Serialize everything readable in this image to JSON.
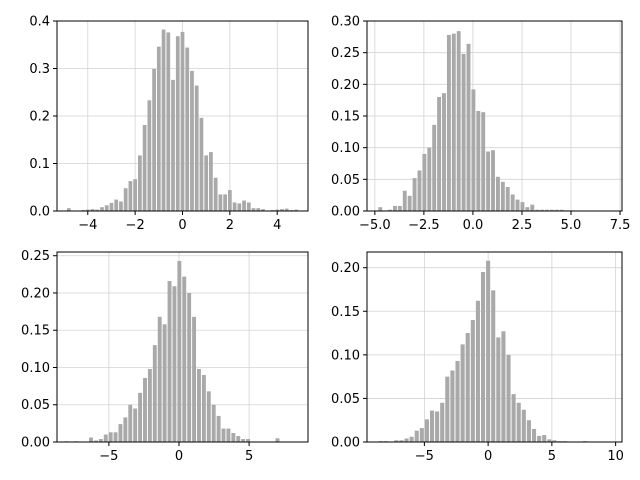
{
  "figure": {
    "background": "#ffffff",
    "bar_color": "#a9a9a9",
    "grid_color": "#d3d3d3"
  },
  "chart_data": [
    {
      "type": "bar",
      "title": "",
      "xlabel": "",
      "ylabel": "",
      "xlim": [
        -5.3,
        5.3
      ],
      "ylim": [
        0,
        0.4
      ],
      "xticks": [
        -4,
        -2,
        0,
        2,
        4
      ],
      "xtick_labels": [
        "−4",
        "−2",
        "0",
        "2",
        "4"
      ],
      "yticks": [
        0,
        0.1,
        0.2,
        0.3,
        0.4
      ],
      "ytick_labels": [
        "0.0",
        "0.1",
        "0.2",
        "0.3",
        "0.4"
      ],
      "grid": true,
      "bin_edges_start": -4.9,
      "bin_width": 0.2,
      "values": [
        0.006,
        0,
        0,
        0.002,
        0.003,
        0.004,
        0.003,
        0.008,
        0.012,
        0.017,
        0.024,
        0.02,
        0.048,
        0.063,
        0.067,
        0.117,
        0.181,
        0.233,
        0.299,
        0.346,
        0.382,
        0.376,
        0.276,
        0.368,
        0.377,
        0.344,
        0.295,
        0.264,
        0.196,
        0.117,
        0.124,
        0.07,
        0.035,
        0.035,
        0.044,
        0.018,
        0.016,
        0.022,
        0.018,
        0.006,
        0.006,
        0.004,
        0.001,
        0.002,
        0.003,
        0.004,
        0.005,
        0.002,
        0.003,
        0.001
      ]
    },
    {
      "type": "bar",
      "title": "",
      "xlabel": "",
      "ylabel": "",
      "xlim": [
        -5.4,
        7.6
      ],
      "ylim": [
        0,
        0.3
      ],
      "xticks": [
        -5,
        -2.5,
        0,
        2.5,
        5,
        7.5
      ],
      "xtick_labels": [
        "−5.0",
        "−2.5",
        "0.0",
        "2.5",
        "5.0",
        "7.5"
      ],
      "yticks": [
        0,
        0.05,
        0.1,
        0.15,
        0.2,
        0.25,
        0.3
      ],
      "ytick_labels": [
        "0.00",
        "0.05",
        "0.10",
        "0.15",
        "0.20",
        "0.25",
        "0.30"
      ],
      "grid": true,
      "bin_edges_start": -4.85,
      "bin_width": 0.25,
      "values": [
        0.006,
        0,
        0.002,
        0.008,
        0.008,
        0.032,
        0.024,
        0.052,
        0.064,
        0.09,
        0.1,
        0.136,
        0.18,
        0.186,
        0.278,
        0.28,
        0.284,
        0.248,
        0.264,
        0.192,
        0.158,
        0.156,
        0.094,
        0.096,
        0.054,
        0.046,
        0.038,
        0.026,
        0.018,
        0.014,
        0.006,
        0.01,
        0.002,
        0.002,
        0.002,
        0.002,
        0.002,
        0.002,
        0.001,
        0.001
      ]
    },
    {
      "type": "bar",
      "title": "",
      "xlabel": "",
      "ylabel": "",
      "xlim": [
        -8.7,
        9.2
      ],
      "ylim": [
        0,
        0.255
      ],
      "xticks": [
        -5,
        0,
        5
      ],
      "xtick_labels": [
        "−5",
        "0",
        "5"
      ],
      "yticks": [
        0,
        0.05,
        0.1,
        0.15,
        0.2,
        0.25
      ],
      "ytick_labels": [
        "0.00",
        "0.05",
        "0.10",
        "0.15",
        "0.20",
        "0.25"
      ],
      "grid": true,
      "bin_edges_start": -8.2,
      "bin_width": 0.35,
      "values": [
        0.001,
        0,
        0.001,
        0,
        0,
        0.006,
        0.002,
        0.004,
        0.01,
        0.013,
        0.013,
        0.024,
        0.033,
        0.05,
        0.045,
        0.066,
        0.086,
        0.098,
        0.13,
        0.168,
        0.158,
        0.216,
        0.209,
        0.243,
        0.222,
        0.2,
        0.168,
        0.098,
        0.09,
        0.068,
        0.05,
        0.035,
        0.018,
        0.018,
        0.012,
        0.008,
        0.004,
        0.004,
        0,
        0,
        0,
        0,
        0,
        0.005
      ]
    },
    {
      "type": "bar",
      "title": "",
      "xlabel": "",
      "ylabel": "",
      "xlim": [
        -9.5,
        10.5
      ],
      "ylim": [
        0,
        0.218
      ],
      "xticks": [
        -5,
        0,
        5,
        10
      ],
      "xtick_labels": [
        "−5",
        "0",
        "5",
        "10"
      ],
      "yticks": [
        0,
        0.05,
        0.1,
        0.15,
        0.2
      ],
      "ytick_labels": [
        "0.00",
        "0.05",
        "0.10",
        "0.15",
        "0.20"
      ],
      "grid": true,
      "bin_edges_start": -8.6,
      "bin_width": 0.4,
      "values": [
        0.001,
        0.001,
        0,
        0.002,
        0.002,
        0.004,
        0.006,
        0.013,
        0.016,
        0.026,
        0.036,
        0.035,
        0.045,
        0.075,
        0.082,
        0.093,
        0.112,
        0.125,
        0.14,
        0.162,
        0.195,
        0.208,
        0.174,
        0.12,
        0.127,
        0.1,
        0.055,
        0.045,
        0.037,
        0.025,
        0.015,
        0.007,
        0.008,
        0.003,
        0.002,
        0.001,
        0.001,
        0,
        0,
        0,
        0.001
      ]
    }
  ]
}
